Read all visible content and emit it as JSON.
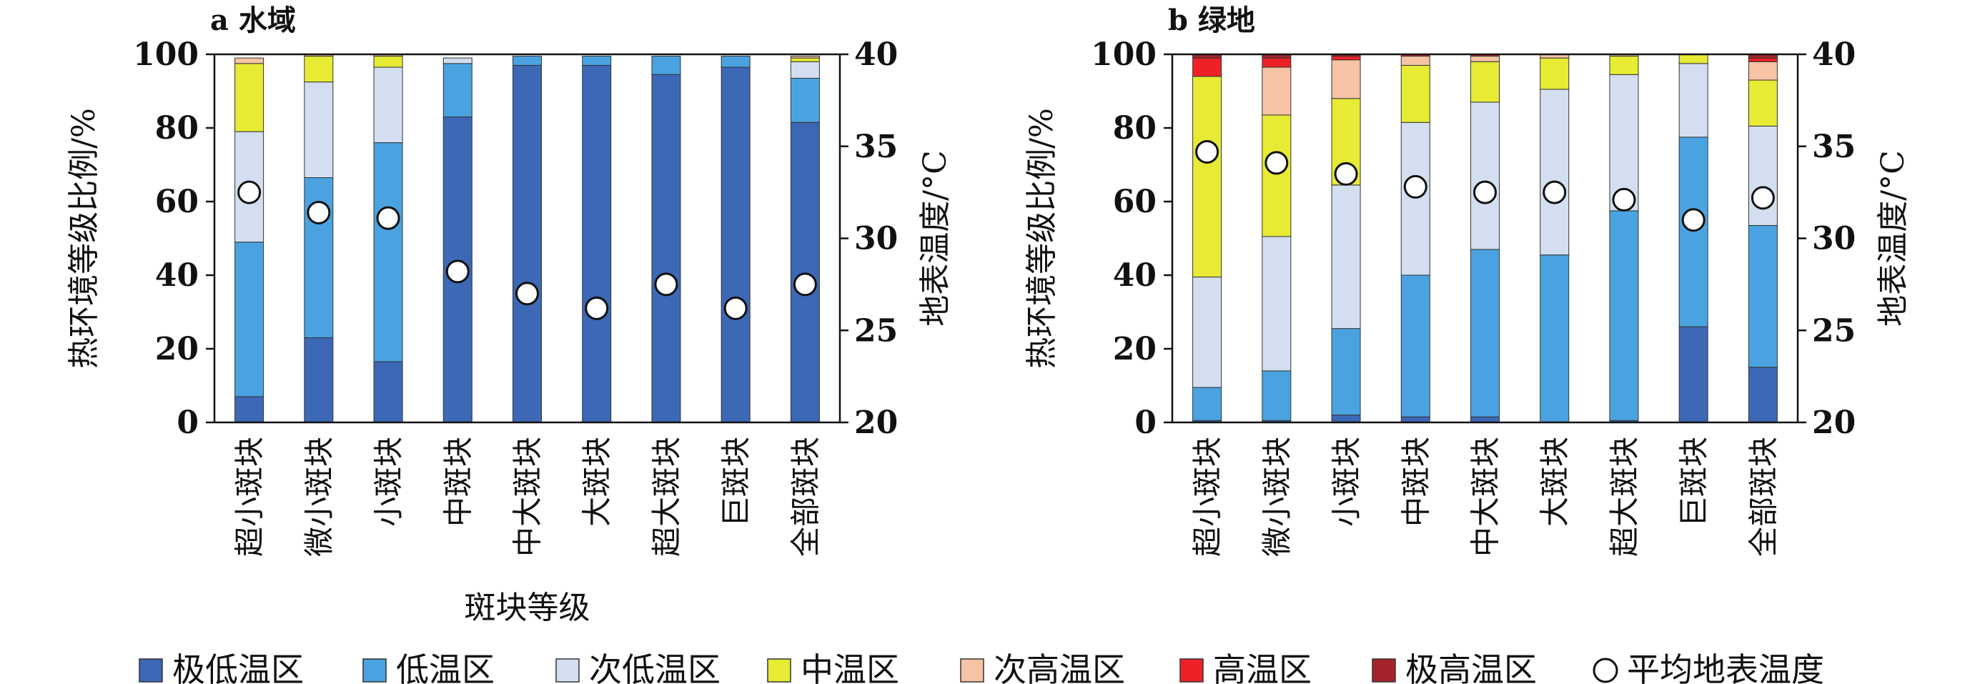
{
  "chart_data": [
    {
      "type": "bar",
      "stacked": true,
      "title": "a 水域",
      "xlabel": "斑块等级",
      "ylabel": "热环境等级比例/%",
      "y2label": "地表温度/°C",
      "ylim": [
        0,
        100
      ],
      "y2lim": [
        20,
        40
      ],
      "yticks": [
        "0",
        "20",
        "40",
        "60",
        "80",
        "100"
      ],
      "y2ticks": [
        "20",
        "25",
        "30",
        "35",
        "40"
      ],
      "categories": [
        "超小斑块",
        "微小斑块",
        "小斑块",
        "中斑块",
        "中大斑块",
        "大斑块",
        "超大斑块",
        "巨斑块",
        "全部斑块"
      ],
      "series": [
        {
          "name": "极低温区",
          "values": [
            7,
            23,
            16.5,
            83,
            97,
            97,
            94.5,
            96.5,
            81.5
          ]
        },
        {
          "name": "低温区",
          "values": [
            42,
            43.5,
            59.5,
            14.5,
            2.5,
            2.5,
            5,
            3,
            12
          ]
        },
        {
          "name": "次低温区",
          "values": [
            30,
            26,
            20.5,
            1.5,
            0,
            0,
            0,
            0,
            4.5
          ]
        },
        {
          "name": "中温区",
          "values": [
            18.5,
            7,
            3,
            0,
            0,
            0,
            0,
            0,
            1
          ]
        },
        {
          "name": "次高温区",
          "values": [
            1.5,
            0.5,
            0.5,
            0,
            0,
            0,
            0,
            0,
            0.5
          ]
        },
        {
          "name": "高温区",
          "values": [
            0,
            0,
            0,
            0,
            0,
            0,
            0,
            0,
            0
          ]
        },
        {
          "name": "极高温区",
          "values": [
            0,
            0,
            0,
            0,
            0,
            0,
            0,
            0,
            0
          ]
        }
      ],
      "mean_temperature": {
        "name": "平均地表温度",
        "values": [
          32.5,
          31.4,
          31.1,
          28.2,
          27,
          26.2,
          27.5,
          26.2,
          27.5
        ]
      }
    },
    {
      "type": "bar",
      "stacked": true,
      "title": "b 绿地",
      "xlabel": "",
      "ylabel": "热环境等级比例/%",
      "y2label": "地表温度/°C",
      "ylim": [
        0,
        100
      ],
      "y2lim": [
        20,
        40
      ],
      "yticks": [
        "0",
        "20",
        "40",
        "60",
        "80",
        "100"
      ],
      "y2ticks": [
        "20",
        "25",
        "30",
        "35",
        "40"
      ],
      "categories": [
        "超小斑块",
        "微小斑块",
        "小斑块",
        "中斑块",
        "中大斑块",
        "大斑块",
        "超大斑块",
        "巨斑块",
        "全部斑块"
      ],
      "series": [
        {
          "name": "极低温区",
          "values": [
            0.5,
            0.5,
            2,
            1.5,
            1.5,
            0,
            0.5,
            26,
            15
          ]
        },
        {
          "name": "低温区",
          "values": [
            9,
            13.5,
            23.5,
            38.5,
            45.5,
            45.5,
            57,
            51.5,
            38.5
          ]
        },
        {
          "name": "次低温区",
          "values": [
            30,
            36.5,
            39,
            41.5,
            40,
            45,
            37,
            20,
            27
          ]
        },
        {
          "name": "中温区",
          "values": [
            54.5,
            33,
            23.5,
            15.5,
            11,
            8.5,
            5,
            2.5,
            12.5
          ]
        },
        {
          "name": "次高温区",
          "values": [
            0,
            13,
            10.5,
            2.5,
            1.5,
            1,
            0.5,
            0,
            5
          ]
        },
        {
          "name": "高温区",
          "values": [
            5,
            2.5,
            1,
            0.5,
            0.5,
            0,
            0,
            0,
            1
          ]
        },
        {
          "name": "极高温区",
          "values": [
            1,
            1,
            0.5,
            0,
            0,
            0,
            0,
            0,
            1
          ]
        }
      ],
      "mean_temperature": {
        "name": "平均地表温度",
        "values": [
          34.7,
          34.1,
          33.5,
          32.8,
          32.5,
          32.5,
          32.1,
          31,
          32.2
        ]
      }
    }
  ],
  "legend": {
    "placement": "bottom",
    "items": [
      {
        "label": "极低温区",
        "color": "#3c68b6",
        "kind": "box"
      },
      {
        "label": "低温区",
        "color": "#4aa3e0",
        "kind": "box"
      },
      {
        "label": "次低温区",
        "color": "#d3dff0",
        "kind": "box"
      },
      {
        "label": "中温区",
        "color": "#e7eb34",
        "kind": "box"
      },
      {
        "label": "次高温区",
        "color": "#f6c3a4",
        "kind": "box"
      },
      {
        "label": "高温区",
        "color": "#ec2227",
        "kind": "box"
      },
      {
        "label": "极高温区",
        "color": "#a5242b",
        "kind": "box"
      },
      {
        "label": "平均地表温度",
        "color": "#ffffff",
        "kind": "circle"
      }
    ]
  }
}
